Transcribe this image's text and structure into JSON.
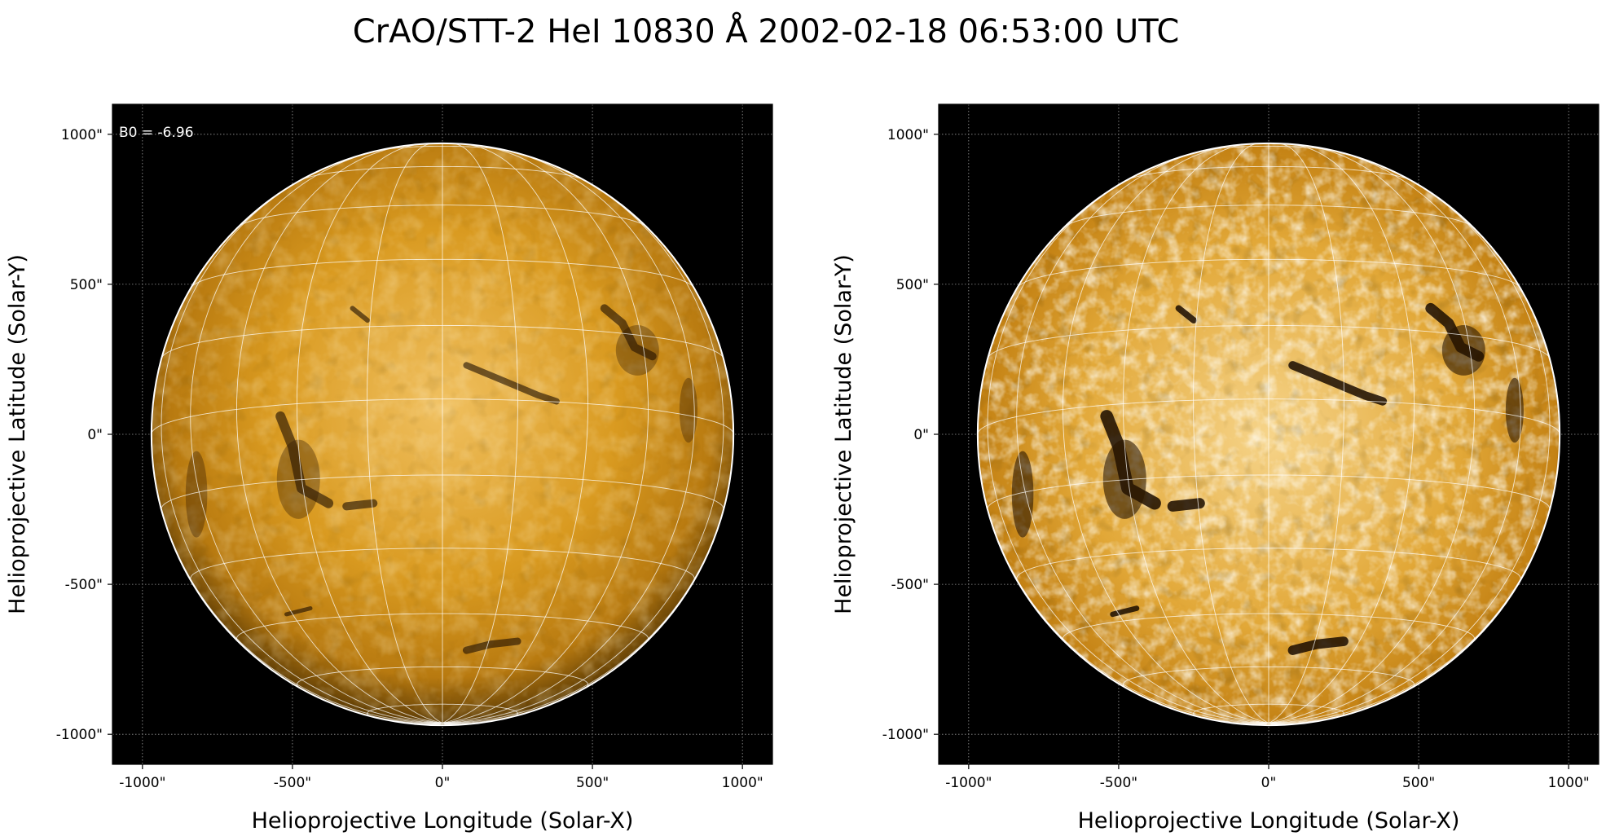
{
  "figure": {
    "title": "CrAO/STT-2 HeI 10830 Å 2002-02-18 06:53:00 UTC"
  },
  "annotation": {
    "b0_text": "B0 = -6.96"
  },
  "panels": [
    {
      "id": "left",
      "contrast": "normal",
      "xlabel": "Helioprojective Longitude (Solar-X)",
      "ylabel": "Helioprojective Latitude (Solar-Y)",
      "xticks": [
        "-1000\"",
        "-500\"",
        "0\"",
        "500\"",
        "1000\""
      ],
      "yticks": [
        "1000\"",
        "500\"",
        "0\"",
        "-500\"",
        "-1000\""
      ]
    },
    {
      "id": "right",
      "contrast": "enhanced",
      "xlabel": "Helioprojective Longitude (Solar-X)",
      "ylabel": "Helioprojective Latitude (Solar-Y)",
      "xticks": [
        "-1000\"",
        "-500\"",
        "0\"",
        "500\"",
        "1000\""
      ],
      "yticks": [
        "1000\"",
        "500\"",
        "0\"",
        "-500\"",
        "-1000\""
      ]
    }
  ],
  "map": {
    "tick_values_arcsec": [
      -1000,
      -500,
      0,
      500,
      1000
    ],
    "axis_range_arcsec": [
      -1100,
      1100
    ],
    "solar_radius_arcsec": 970,
    "b0_degrees": -6.96,
    "grid_spacing_degrees": 15,
    "colormap": "orange-gold (sdo-like HeI)",
    "colors": {
      "background": "#000000",
      "disk_dark": "#1a0e00",
      "disk_mid": "#c98a12",
      "disk_light": "#fbe6b0",
      "limb": "#ffffff",
      "grid": "#ffffff"
    }
  }
}
